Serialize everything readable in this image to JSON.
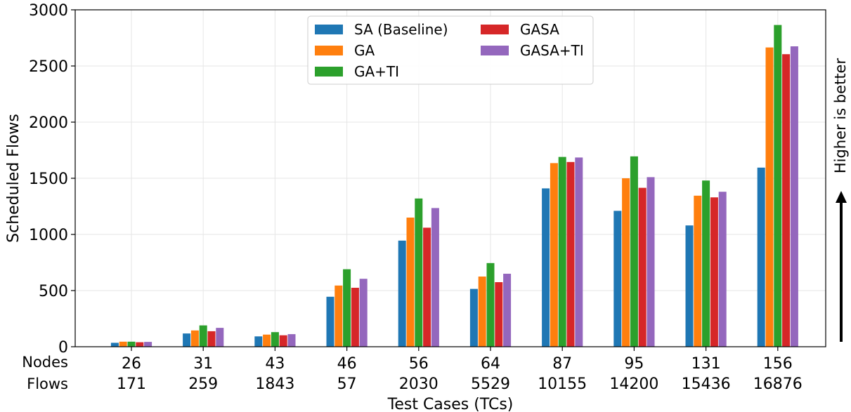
{
  "chart_data": {
    "type": "bar",
    "title": "",
    "xlabel": "Test Cases (TCs)",
    "ylabel": "Scheduled Flows",
    "ylim": [
      0,
      3000
    ],
    "yticks": [
      0,
      500,
      1000,
      1500,
      2000,
      2500,
      3000
    ],
    "grid": true,
    "legend_position": "top-center",
    "row_labels": {
      "nodes": "Nodes",
      "flows": "Flows"
    },
    "nodes": [
      "26",
      "31",
      "43",
      "46",
      "56",
      "64",
      "87",
      "95",
      "131",
      "156"
    ],
    "flows": [
      "171",
      "259",
      "1843",
      "57",
      "2030",
      "5529",
      "10155",
      "14200",
      "15436",
      "16876"
    ],
    "annotation": "Higher is better",
    "series": [
      {
        "name": "SA (Baseline)",
        "color": "#1f77b4",
        "values": [
          35,
          118,
          92,
          445,
          945,
          515,
          1410,
          1210,
          1080,
          1595
        ]
      },
      {
        "name": "GA",
        "color": "#ff7f0e",
        "values": [
          45,
          145,
          108,
          545,
          1150,
          625,
          1635,
          1500,
          1345,
          2665
        ]
      },
      {
        "name": "GA+TI",
        "color": "#2ca02c",
        "values": [
          45,
          190,
          130,
          690,
          1320,
          745,
          1690,
          1695,
          1480,
          2865
        ]
      },
      {
        "name": "GASA",
        "color": "#d62728",
        "values": [
          40,
          138,
          102,
          525,
          1060,
          575,
          1645,
          1415,
          1330,
          2605
        ]
      },
      {
        "name": "GASA+TI",
        "color": "#9467bd",
        "values": [
          43,
          168,
          112,
          605,
          1235,
          650,
          1685,
          1510,
          1380,
          2675
        ]
      }
    ]
  }
}
